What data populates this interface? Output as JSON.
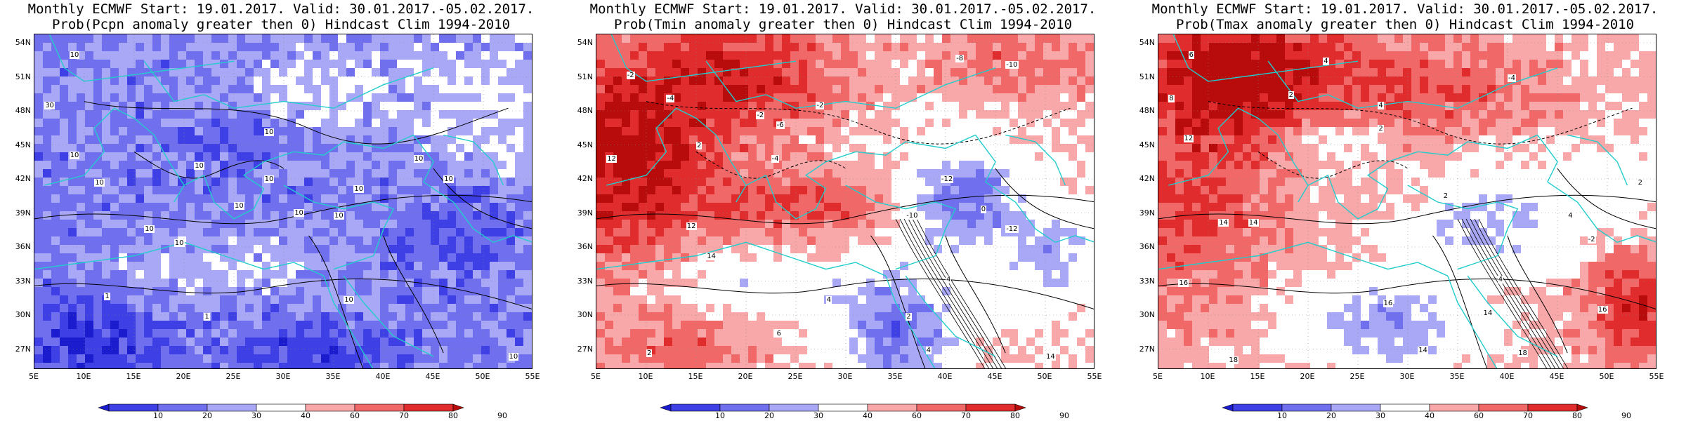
{
  "panels": [
    {
      "title_line1": "Monthly ECMWF Start: 19.01.2017. Valid: 30.01.2017.-05.02.2017.",
      "title_line2": "Prob(Pcpn anomaly greater then 0) Hindcast Clim 1994-2010",
      "variable": "Pcpn",
      "contour_labels": [
        "10",
        "10",
        "10",
        "10",
        "10",
        "10",
        "10",
        "10",
        "10",
        "10",
        "10",
        "10",
        "10",
        "1",
        "1",
        "10",
        "30",
        "10",
        "10"
      ]
    },
    {
      "title_line1": "Monthly ECMWF Start: 19.01.2017. Valid: 30.01.2017.-05.02.2017.",
      "title_line2": "Prob(Tmin anomaly greater then 0) Hindcast Clim 1994-2010",
      "variable": "Tmin",
      "contour_labels": [
        "-2",
        "-8",
        "-10",
        "-4",
        "-2",
        "-6",
        "-2",
        "12",
        "-4",
        "2",
        "-12",
        "-10",
        "12",
        "14",
        "4",
        "4",
        "2",
        "14",
        "6",
        "4",
        "2",
        "-12",
        "0"
      ]
    },
    {
      "title_line1": "Monthly ECMWF Start: 19.01.2017. Valid: 30.01.2017.-05.02.2017.",
      "title_line2": "Prob(Tmax anomaly greater then 0) Hindcast Clim 1994-2010",
      "variable": "Tmax",
      "contour_labels": [
        "6",
        "4",
        "8",
        "-4",
        "2",
        "4",
        "2",
        "12",
        "14",
        "2",
        "4",
        "14",
        "16",
        "16",
        "18",
        "14",
        "16",
        "18",
        "14",
        "4",
        "-2",
        "2"
      ]
    }
  ],
  "lat_ticks": [
    "54N",
    "51N",
    "48N",
    "45N",
    "42N",
    "39N",
    "36N",
    "33N",
    "30N",
    "27N"
  ],
  "lon_ticks": [
    "5E",
    "10E",
    "15E",
    "20E",
    "25E",
    "30E",
    "35E",
    "40E",
    "45E",
    "50E",
    "55E"
  ],
  "colorbar": {
    "labels": [
      "10",
      "20",
      "30",
      "40",
      "60",
      "70",
      "80",
      "90"
    ],
    "colors": [
      "#1c1ccf",
      "#3f3fe6",
      "#7070ee",
      "#a8a8f6",
      "#ffffff",
      "#f8a8a8",
      "#f06868",
      "#e02c2c",
      "#b80c0c"
    ]
  },
  "colors": {
    "coast": "#22cccc",
    "contour": "#000000"
  }
}
